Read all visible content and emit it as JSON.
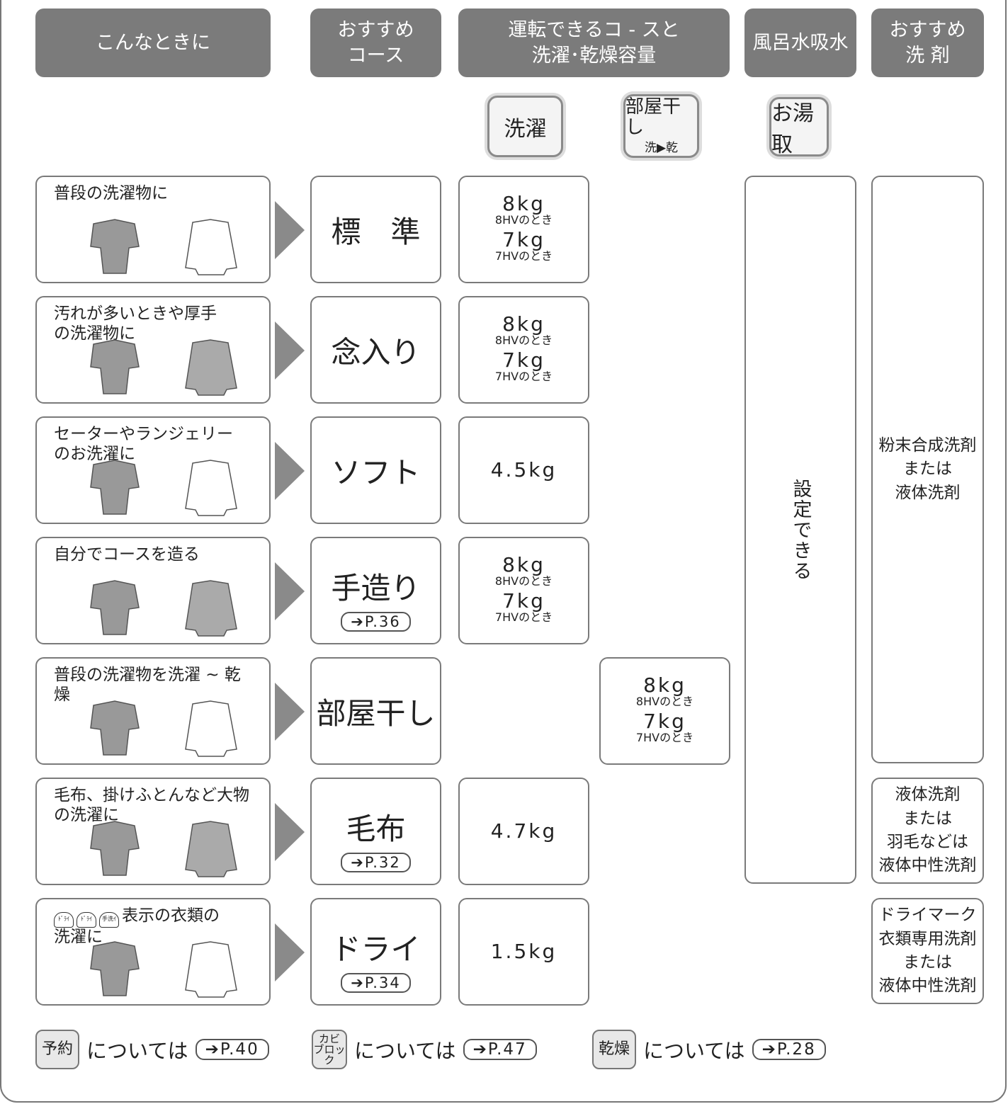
{
  "header_row": [
    "こんなときに",
    "おすすめ\nコース",
    "運転できるコ - スと\n洗濯･乾燥容量",
    "風呂水吸水",
    "おすすめ\n洗 剤"
  ],
  "buttons": [
    {
      "label": "洗濯"
    },
    {
      "label": "部屋干し",
      "sub": "洗▶乾"
    },
    {
      "label": "お湯取"
    }
  ],
  "rows": [
    {
      "situation": "普段の洗濯物に",
      "course": "標　準",
      "wash_capacity": [
        {
          "amount": "8kg",
          "note": "8HVのとき"
        },
        {
          "amount": "7kg",
          "note": "7HVのとき"
        }
      ]
    },
    {
      "situation": "汚れが多いときや厚手\nの洗濯物に",
      "course": "念入り",
      "wash_capacity": [
        {
          "amount": "8kg",
          "note": "8HVのとき"
        },
        {
          "amount": "7kg",
          "note": "7HVのとき"
        }
      ]
    },
    {
      "situation": "セーターやランジェリー\nのお洗濯に",
      "course": "ソフト",
      "wash_capacity": [
        {
          "amount": "4.5kg"
        }
      ]
    },
    {
      "situation": "自分でコースを造る",
      "course": "手造り",
      "ref": "➔P.36",
      "wash_capacity": [
        {
          "amount": "8kg",
          "note": "8HVのとき"
        },
        {
          "amount": "7kg",
          "note": "7HVのとき"
        }
      ]
    },
    {
      "situation": "普段の洗濯物を洗濯 ~ 乾燥",
      "course": "部屋干し",
      "dry_capacity": [
        {
          "amount": "8kg",
          "note": "8HVのとき"
        },
        {
          "amount": "7kg",
          "note": "7HVのとき"
        }
      ]
    },
    {
      "situation": "毛布、掛けふとんなど大物\nの洗濯に",
      "course": "毛布",
      "ref": "➔P.32",
      "wash_capacity": [
        {
          "amount": "4.7kg"
        }
      ]
    },
    {
      "situation_icons": [
        "ﾄﾞﾗｲ",
        "ﾄﾞﾗｲ",
        "手洗ｲ"
      ],
      "situation": "表示の衣類の\n洗濯に",
      "course": "ドライ",
      "ref": "➔P.34",
      "wash_capacity": [
        {
          "amount": "1.5kg"
        }
      ]
    }
  ],
  "bath_setting": "設定できる",
  "detergents": [
    "粉末合成洗剤\nまたは\n液体洗剤",
    "液体洗剤\nまたは\n羽毛などは\n液体中性洗剤",
    "ドライマーク\n衣類専用洗剤\nまたは\n液体中性洗剤"
  ],
  "footer": [
    {
      "icon": "予約",
      "text": "については",
      "ref": "➔P.40"
    },
    {
      "icon": "カビ\nブロック",
      "text": "については",
      "ref": "➔P.47"
    },
    {
      "icon": "乾燥",
      "text": "については",
      "ref": "➔P.28"
    }
  ]
}
